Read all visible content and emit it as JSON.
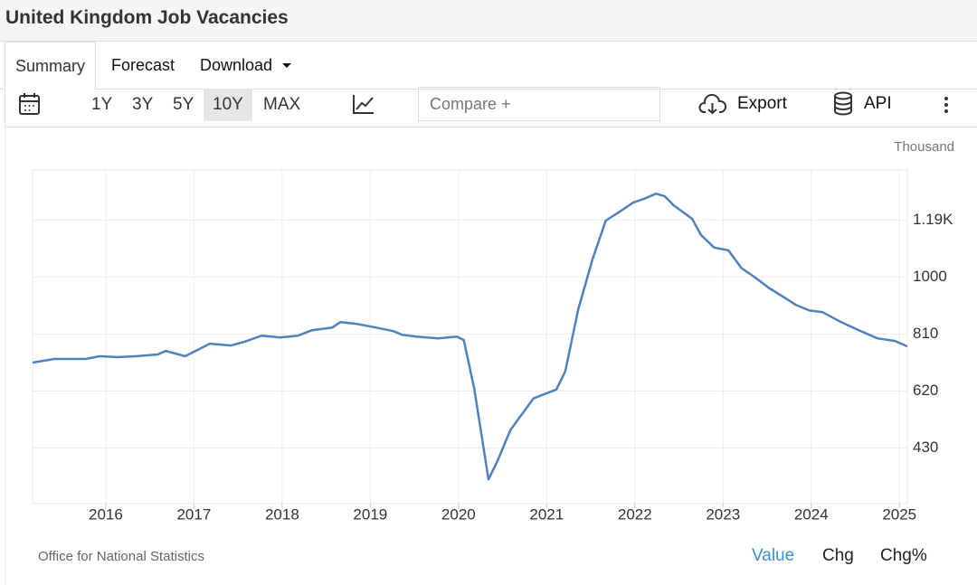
{
  "header": {
    "title": "United Kingdom Job Vacancies"
  },
  "tabs": [
    "Summary",
    "Forecast",
    "Download"
  ],
  "active_tab": 0,
  "toolbar": {
    "ranges": [
      "1Y",
      "3Y",
      "5Y",
      "10Y",
      "MAX"
    ],
    "active_range": 3,
    "compare": "Compare +",
    "export": "Export",
    "api": "API"
  },
  "chart_data": {
    "type": "line",
    "y_unit": "Thousand",
    "x": [
      2015.17,
      2015.42,
      2015.77,
      2015.93,
      2016.13,
      2016.34,
      2016.59,
      2016.68,
      2016.9,
      2017.06,
      2017.18,
      2017.42,
      2017.57,
      2017.77,
      2017.98,
      2018.18,
      2018.34,
      2018.57,
      2018.66,
      2018.85,
      2019.06,
      2019.26,
      2019.36,
      2019.52,
      2019.77,
      2019.98,
      2020.06,
      2020.18,
      2020.34,
      2020.44,
      2020.59,
      2020.7,
      2020.85,
      2020.95,
      2021.11,
      2021.21,
      2021.36,
      2021.52,
      2021.67,
      2021.83,
      2021.98,
      2022.1,
      2022.24,
      2022.34,
      2022.44,
      2022.65,
      2022.75,
      2022.9,
      2023.06,
      2023.21,
      2023.36,
      2023.52,
      2023.67,
      2023.83,
      2023.98,
      2024.13,
      2024.34,
      2024.54,
      2024.75,
      2024.95,
      2025.09
    ],
    "series": [
      {
        "color": "#4f81bd",
        "values": [
          715,
          727,
          727,
          736,
          733,
          736,
          742,
          754,
          736,
          760,
          778,
          772,
          784,
          805,
          799,
          805,
          823,
          832,
          850,
          844,
          832,
          820,
          808,
          802,
          796,
          802,
          790,
          625,
          325,
          385,
          490,
          535,
          595,
          607,
          625,
          685,
          895,
          1060,
          1189,
          1219,
          1249,
          1261,
          1279,
          1270,
          1240,
          1195,
          1141,
          1099,
          1090,
          1030,
          1000,
          964,
          937,
          907,
          889,
          883,
          850,
          823,
          796,
          787,
          769
        ]
      }
    ],
    "xlim": [
      2015.17,
      2025.09
    ],
    "ylim": [
      244,
      1358
    ],
    "xticks": [
      2016,
      2017,
      2018,
      2019,
      2020,
      2021,
      2022,
      2023,
      2024,
      2025
    ],
    "yticks": [
      430,
      620,
      810,
      1000,
      {
        "value": 1190,
        "label": "1.19K"
      }
    ],
    "grid": true
  },
  "footer": {
    "source": "Office for National Statistics",
    "views": [
      "Value",
      "Chg",
      "Chg%"
    ],
    "active_view": 0
  }
}
